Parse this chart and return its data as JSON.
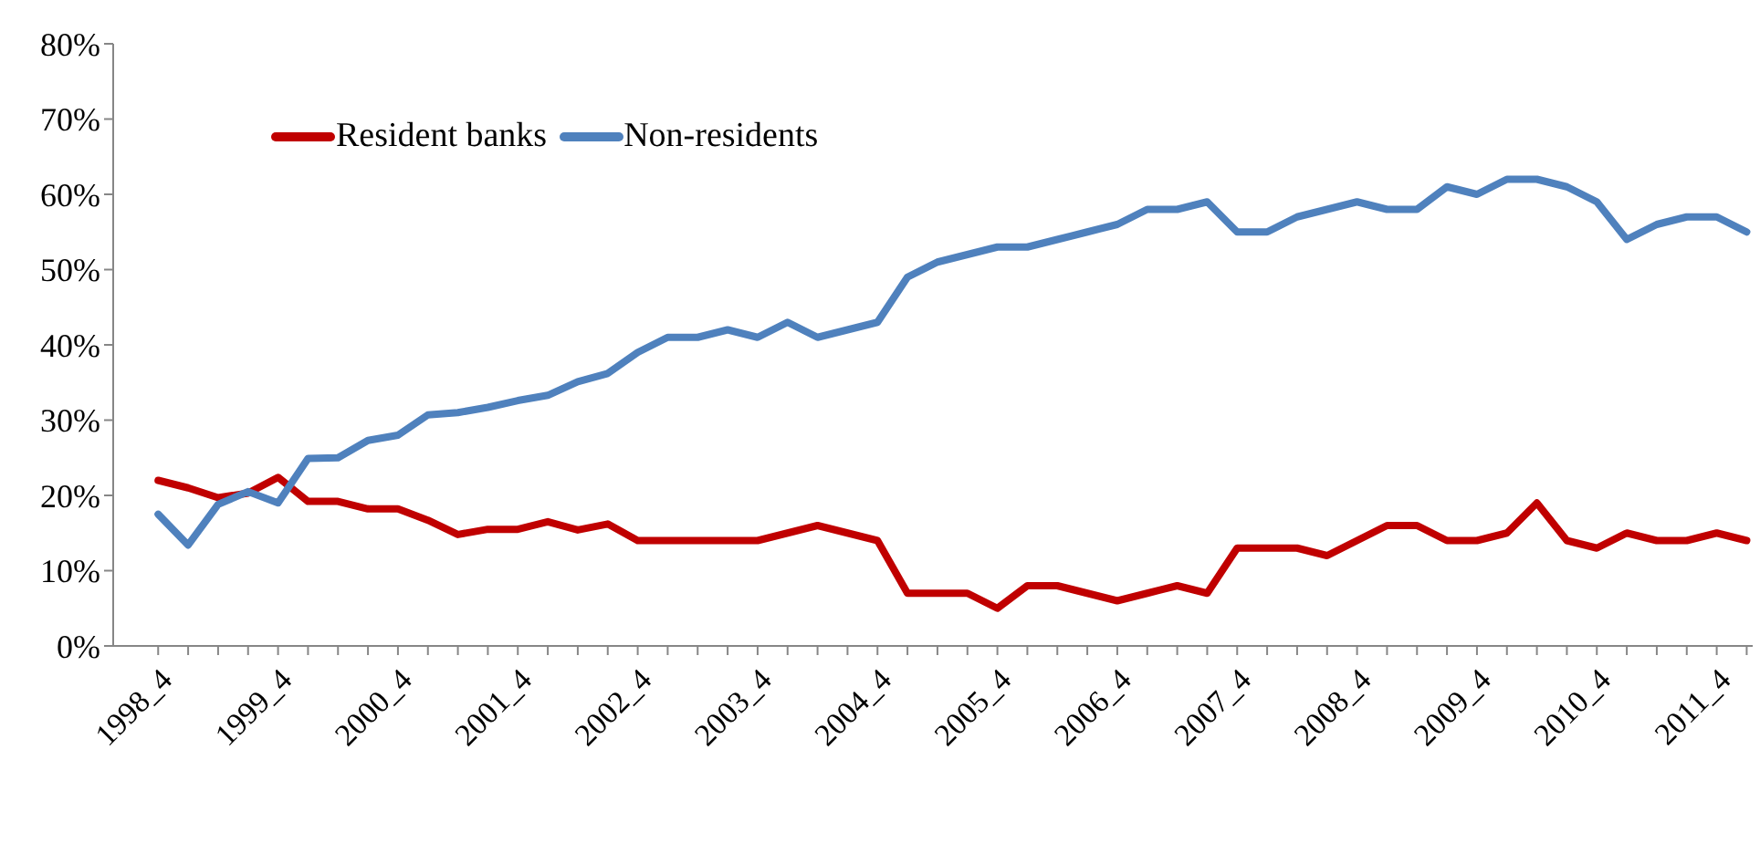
{
  "chart_data": {
    "type": "line",
    "categories": [
      "1998_4",
      null,
      null,
      null,
      "1999_4",
      null,
      null,
      null,
      "2000_4",
      null,
      null,
      null,
      "2001_4",
      null,
      null,
      null,
      "2002_4",
      null,
      null,
      null,
      "2003_4",
      null,
      null,
      null,
      "2004_4",
      null,
      null,
      null,
      "2005_4",
      null,
      null,
      null,
      "2006_4",
      null,
      null,
      null,
      "2007_4",
      null,
      null,
      null,
      "2008_4",
      null,
      null,
      null,
      "2009_4",
      null,
      null,
      null,
      "2010_4",
      null,
      null,
      null,
      "2011_4",
      null
    ],
    "series": [
      {
        "name": "Resident banks",
        "color": "#c00000",
        "values": [
          22,
          21,
          19.7,
          20.3,
          22.4,
          19.2,
          19.2,
          18.2,
          18.2,
          16.7,
          14.8,
          15.5,
          15.5,
          16.5,
          15.4,
          16.2,
          14,
          14,
          14,
          14,
          14,
          15,
          16,
          15,
          14,
          7,
          7,
          7,
          5,
          8,
          8,
          7,
          6,
          7,
          8,
          7,
          13,
          13,
          13,
          12,
          14,
          16,
          16,
          14,
          14,
          15,
          19,
          14,
          13,
          15,
          14,
          14,
          15,
          14
        ]
      },
      {
        "name": "Non-residents",
        "color": "#4f81bd",
        "values": [
          17.5,
          13.4,
          18.8,
          20.5,
          19,
          24.9,
          25,
          27.3,
          28,
          30.7,
          31,
          31.7,
          32.6,
          33.3,
          35.1,
          36.2,
          39,
          41,
          41,
          42,
          41,
          43,
          41,
          42,
          43,
          49,
          51,
          52,
          53,
          53,
          54,
          55,
          56,
          58,
          58,
          59,
          55,
          55,
          57,
          58,
          59,
          58,
          58,
          61,
          60,
          62,
          62,
          61,
          59,
          54,
          56,
          57,
          57,
          55
        ]
      }
    ],
    "ylim": [
      0,
      80
    ],
    "yticks": [
      {
        "value": 0,
        "label": "0%"
      },
      {
        "value": 10,
        "label": "10%"
      },
      {
        "value": 20,
        "label": "20%"
      },
      {
        "value": 30,
        "label": "30%"
      },
      {
        "value": 40,
        "label": "40%"
      },
      {
        "value": 50,
        "label": "50%"
      },
      {
        "value": 60,
        "label": "60%"
      },
      {
        "value": 70,
        "label": "70%"
      },
      {
        "value": 80,
        "label": "80%"
      }
    ],
    "legend": "top left"
  }
}
